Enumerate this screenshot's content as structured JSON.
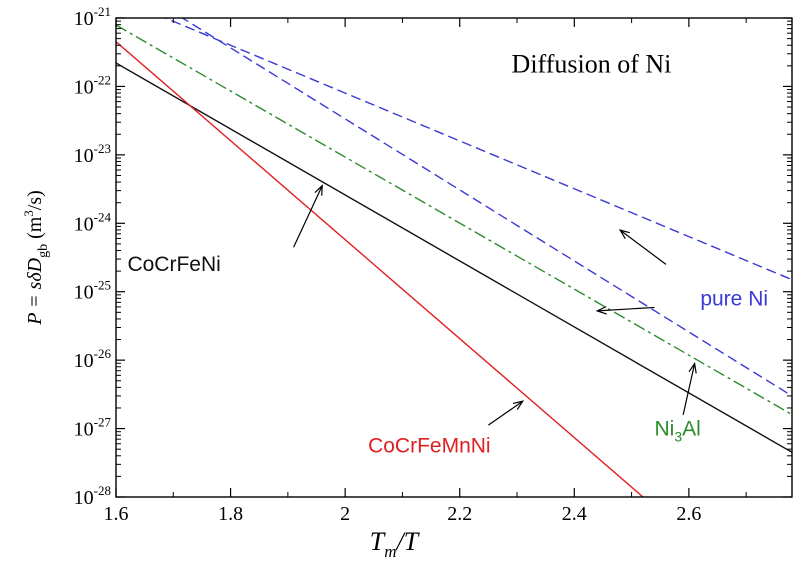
{
  "chart_data": {
    "type": "line",
    "title": "Diffusion of Ni",
    "xlabel": {
      "main": "T",
      "sub": "m",
      "rest": "/T"
    },
    "ylabel": {
      "lhs": "P = sδD",
      "sub": "gb",
      "units_open": " (m",
      "units_sup": "3",
      "units_close": "/s)"
    },
    "xlim": [
      1.6,
      2.78
    ],
    "ylim_log10": [
      -28,
      -21
    ],
    "y_scale": "log",
    "x_ticks": [
      {
        "value": 1.6,
        "label": "1.6"
      },
      {
        "value": 1.8,
        "label": "1.8"
      },
      {
        "value": 2.0,
        "label": "2"
      },
      {
        "value": 2.2,
        "label": "2.2"
      },
      {
        "value": 2.4,
        "label": "2.4"
      },
      {
        "value": 2.6,
        "label": "2.6"
      }
    ],
    "y_ticks": [
      {
        "exp": -21,
        "base": "10",
        "sup": "-21"
      },
      {
        "exp": -22,
        "base": "10",
        "sup": "-22"
      },
      {
        "exp": -23,
        "base": "10",
        "sup": "-23"
      },
      {
        "exp": -24,
        "base": "10",
        "sup": "-24"
      },
      {
        "exp": -25,
        "base": "10",
        "sup": "-25"
      },
      {
        "exp": -26,
        "base": "10",
        "sup": "-26"
      },
      {
        "exp": -27,
        "base": "10",
        "sup": "-27"
      },
      {
        "exp": -28,
        "base": "10",
        "sup": "-28"
      }
    ],
    "series": [
      {
        "name": "pure Ni",
        "color": "#3a3ad6",
        "dash": "dashed",
        "points": [
          [
            1.6,
            2e-21
          ],
          [
            2.78,
            1.5e-25
          ]
        ]
      },
      {
        "name": "pure Ni",
        "color": "#3a3ad6",
        "dash": "dashed",
        "points": [
          [
            1.6,
            4e-21
          ],
          [
            2.78,
            3e-27
          ]
        ]
      },
      {
        "name": "Ni3Al",
        "color": "#2e8b2e",
        "dash": "dashdot",
        "points": [
          [
            1.6,
            7.9e-22
          ],
          [
            2.78,
            1.6e-27
          ]
        ]
      },
      {
        "name": "CoCrFeNi",
        "color": "#111111",
        "dash": "solid",
        "points": [
          [
            1.6,
            2.2e-22
          ],
          [
            2.78,
            4.5e-28
          ]
        ]
      },
      {
        "name": "CoCrFeMnNi",
        "color": "#e02020",
        "dash": "solid",
        "points": [
          [
            1.6,
            4.5e-22
          ],
          [
            2.52,
            1e-28
          ]
        ]
      }
    ],
    "annotations": [
      {
        "label": "pure Ni",
        "color": "#3a3ad6",
        "text_at": [
          2.62,
          -25.2
        ],
        "arrows": [
          [
            [
              2.56,
              -24.6
            ],
            [
              2.48,
              -24.1
            ]
          ],
          [
            [
              2.54,
              -25.23
            ],
            [
              2.44,
              -25.28
            ]
          ]
        ]
      },
      {
        "label": "Ni",
        "sub": "3",
        "rest": "Al",
        "color": "#2e8b2e",
        "text_at": [
          2.54,
          -27.1
        ],
        "arrows": [
          [
            [
              2.59,
              -26.8
            ],
            [
              2.61,
              -26.05
            ]
          ]
        ]
      },
      {
        "label": "CoCrFeNi",
        "color": "#111111",
        "text_at": [
          1.62,
          -24.7
        ],
        "arrows": [
          [
            [
              1.91,
              -24.35
            ],
            [
              1.96,
              -23.45
            ]
          ]
        ]
      },
      {
        "label": "CoCrFeMnNi",
        "color": "#e02020",
        "text_at": [
          2.04,
          -27.35
        ],
        "arrows": [
          [
            [
              2.25,
              -26.95
            ],
            [
              2.31,
              -26.6
            ]
          ]
        ]
      }
    ],
    "grid": false,
    "legend": "none"
  }
}
